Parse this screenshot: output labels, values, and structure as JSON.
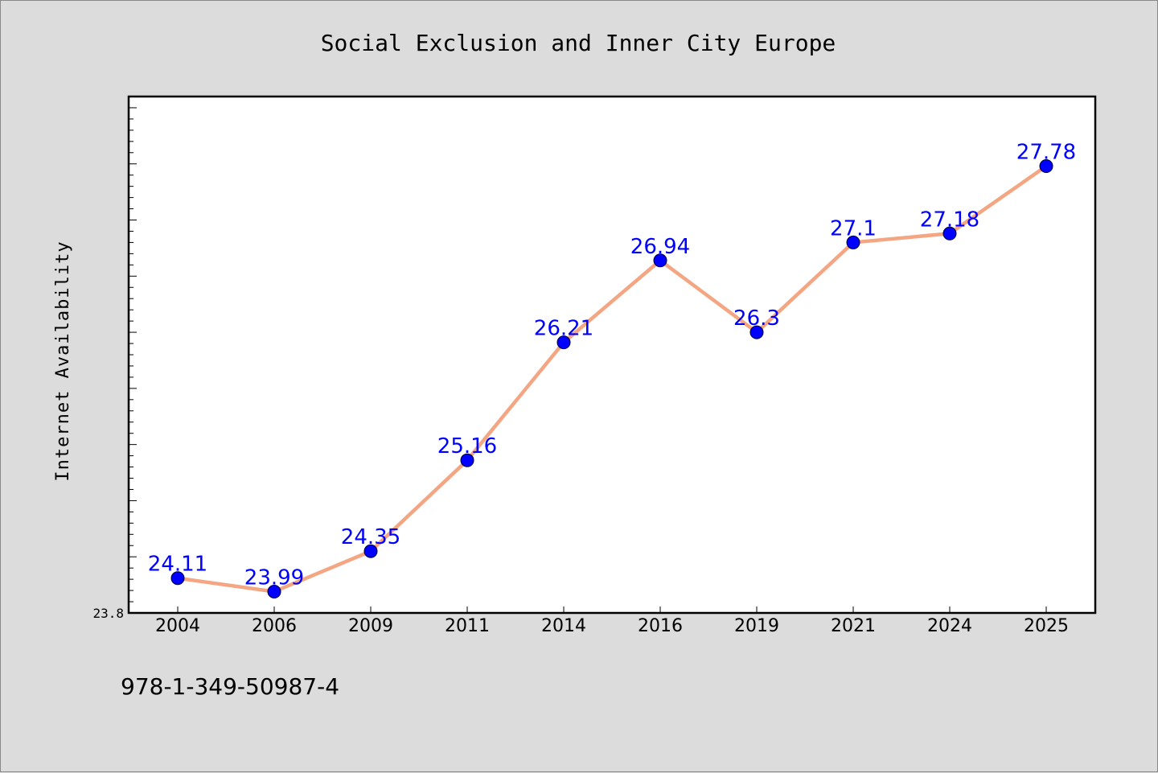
{
  "chart_data": {
    "type": "line",
    "title": "Social Exclusion and Inner City Europe",
    "ylabel": "Internet Availability",
    "xlabel": "",
    "categories": [
      "2004",
      "2006",
      "2009",
      "2011",
      "2014",
      "2016",
      "2019",
      "2021",
      "2024",
      "2025"
    ],
    "series": [
      {
        "values": [
          24.11,
          23.99,
          24.35,
          25.16,
          26.21,
          26.94,
          26.3,
          27.1,
          27.18,
          27.78
        ],
        "labels": [
          "24.11",
          "23.99",
          "24.35",
          "25.16",
          "26.21",
          "26.94",
          "26.3",
          "27.1",
          "27.18",
          "27.78"
        ]
      }
    ],
    "ylim": [
      23.8,
      28.4
    ],
    "yticks_labeled": [
      "23.8"
    ],
    "grid": false,
    "line_color": "#f4a582",
    "marker_color": "#0000ff",
    "label_color": "#0000ff"
  },
  "footer": {
    "isbn": "978-1-349-50987-4"
  }
}
